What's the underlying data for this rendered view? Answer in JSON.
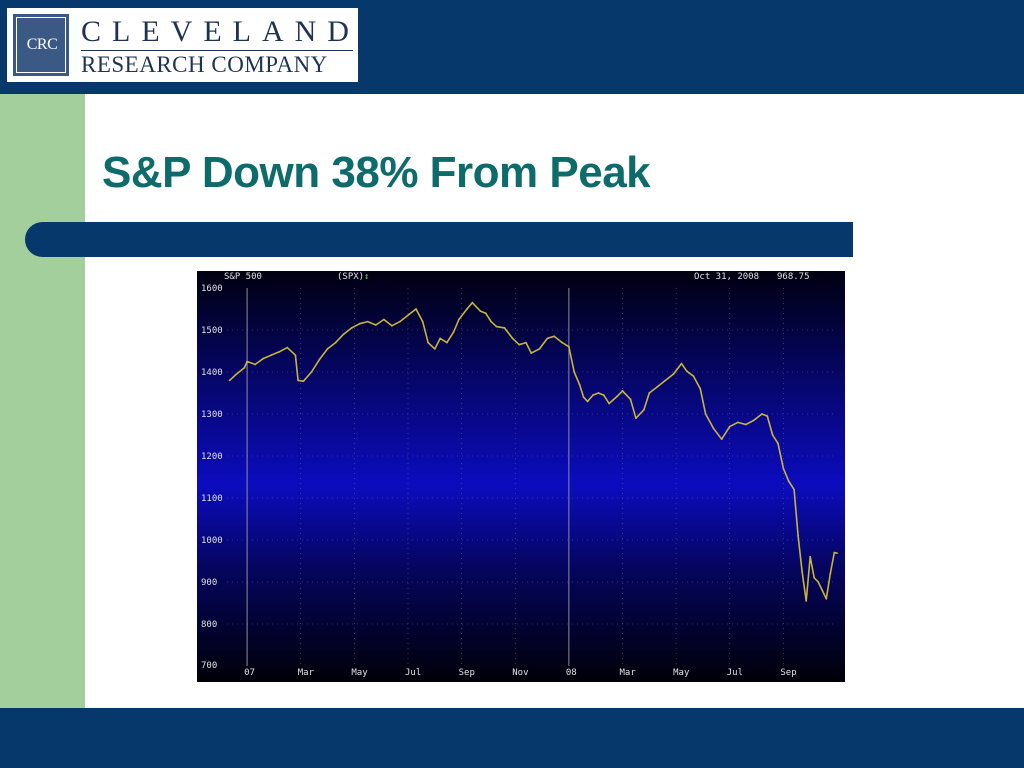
{
  "logo": {
    "initials": "CRC",
    "line1": "CLEVELAND",
    "line2": "RESEARCH COMPANY"
  },
  "slide": {
    "title": "S&P Down 38% From Peak"
  },
  "colors": {
    "navy": "#07386b",
    "green_bar": "#a3cf9c",
    "title": "#0d6b6c",
    "price_line": "#c8b43a"
  },
  "chart_header": {
    "name": "S&P 500",
    "symbol": "(SPX)",
    "arrow": "↕",
    "date": "Oct 31, 2008",
    "value": "968.75"
  },
  "chart_data": {
    "type": "line",
    "title": "S&P 500",
    "xlabel": "",
    "ylabel": "",
    "ylim": [
      700,
      1600
    ],
    "y_ticks": [
      700,
      800,
      900,
      1000,
      1100,
      1200,
      1300,
      1400,
      1500,
      1600
    ],
    "x_ticks": [
      "07",
      "Mar",
      "May",
      "Jul",
      "Sep",
      "Nov",
      "08",
      "Mar",
      "May",
      "Jul",
      "Sep"
    ],
    "x_tick_months": [
      12,
      14,
      16,
      18,
      20,
      22,
      24,
      26,
      28,
      30,
      32
    ],
    "xlim_months": [
      11.25,
      34.0
    ],
    "year_markers_months": [
      12,
      24
    ],
    "grid": true,
    "series": [
      {
        "name": "S&P 500",
        "x_months": [
          11.35,
          11.6,
          11.9,
          12.0,
          12.3,
          12.6,
          12.9,
          13.2,
          13.5,
          13.8,
          13.9,
          14.1,
          14.4,
          14.7,
          15.0,
          15.3,
          15.6,
          15.9,
          16.2,
          16.5,
          16.8,
          17.1,
          17.4,
          17.7,
          18.0,
          18.3,
          18.55,
          18.75,
          19.0,
          19.2,
          19.45,
          19.7,
          19.9,
          20.2,
          20.4,
          20.7,
          20.9,
          21.1,
          21.3,
          21.6,
          21.9,
          22.15,
          22.4,
          22.6,
          22.9,
          23.2,
          23.45,
          23.75,
          24.0,
          24.2,
          24.4,
          24.55,
          24.7,
          24.9,
          25.1,
          25.3,
          25.5,
          25.8,
          26.0,
          26.3,
          26.5,
          26.8,
          27.0,
          27.3,
          27.6,
          27.9,
          28.2,
          28.4,
          28.65,
          28.9,
          29.1,
          29.4,
          29.7,
          30.0,
          30.3,
          30.6,
          30.9,
          31.2,
          31.4,
          31.6,
          31.8,
          32.0,
          32.2,
          32.4,
          32.55,
          32.7,
          32.85,
          33.0,
          33.15,
          33.3,
          33.45,
          33.6,
          33.75,
          33.9,
          34.0
        ],
        "values": [
          1380,
          1395,
          1410,
          1425,
          1418,
          1432,
          1440,
          1448,
          1458,
          1440,
          1380,
          1378,
          1400,
          1430,
          1455,
          1470,
          1490,
          1505,
          1515,
          1520,
          1512,
          1525,
          1510,
          1520,
          1535,
          1550,
          1520,
          1470,
          1455,
          1480,
          1470,
          1495,
          1525,
          1550,
          1565,
          1545,
          1540,
          1520,
          1508,
          1505,
          1480,
          1465,
          1470,
          1445,
          1455,
          1480,
          1485,
          1470,
          1460,
          1400,
          1370,
          1340,
          1330,
          1345,
          1350,
          1345,
          1325,
          1342,
          1355,
          1335,
          1290,
          1310,
          1350,
          1365,
          1380,
          1395,
          1420,
          1402,
          1390,
          1360,
          1300,
          1265,
          1240,
          1270,
          1280,
          1275,
          1285,
          1300,
          1295,
          1250,
          1230,
          1170,
          1140,
          1120,
          1010,
          925,
          855,
          960,
          910,
          900,
          880,
          860,
          920,
          970,
          968.75
        ]
      }
    ]
  }
}
